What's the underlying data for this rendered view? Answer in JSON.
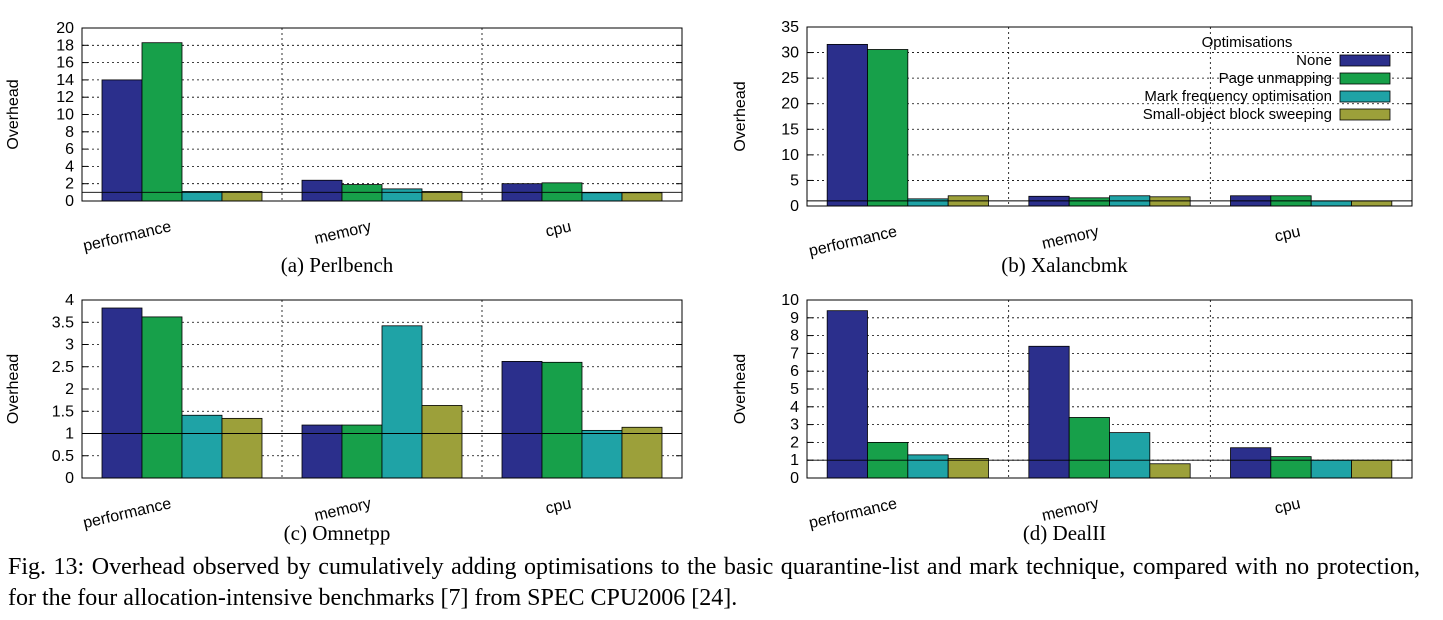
{
  "figure_caption": "Fig. 13: Overhead observed by cumulatively adding optimisations to the basic quarantine-list and mark technique, compared with no protection, for the four allocation-intensive benchmarks [7] from SPEC CPU2006 [24].",
  "legend": {
    "title": "Optimisations",
    "entries": [
      "None",
      "Page unmapping",
      "Mark frequency optimisation",
      "Small-object block sweeping"
    ]
  },
  "colors": {
    "None": "#2b2f8c",
    "Page unmapping": "#17a04a",
    "Mark frequency optimisation": "#1fa3a6",
    "Small-object block sweeping": "#9ca03a",
    "baseline": "#000000",
    "grid": "#000000"
  },
  "chart_data": [
    {
      "type": "bar",
      "subcaption": "(a) Perlbench",
      "ylabel": "Overhead",
      "categories": [
        "performance",
        "memory",
        "cpu"
      ],
      "ylim": [
        0,
        20
      ],
      "yticks": [
        0,
        2,
        4,
        6,
        8,
        10,
        12,
        14,
        16,
        18,
        20
      ],
      "ytick_labels": [
        "0",
        "2",
        "4",
        "6",
        "8",
        "10",
        "12",
        "14",
        "16",
        "18",
        "20"
      ],
      "grid": "dashed",
      "baseline": 1,
      "legend": false,
      "series": [
        {
          "name": "None",
          "values": [
            14.0,
            2.4,
            2.0
          ]
        },
        {
          "name": "Page unmapping",
          "values": [
            18.3,
            1.9,
            2.1
          ]
        },
        {
          "name": "Mark frequency optimisation",
          "values": [
            1.1,
            1.4,
            0.95
          ]
        },
        {
          "name": "Small-object block sweeping",
          "values": [
            1.1,
            1.1,
            0.95
          ]
        }
      ]
    },
    {
      "type": "bar",
      "subcaption": "(b) Xalancbmk",
      "ylabel": "Overhead",
      "categories": [
        "performance",
        "memory",
        "cpu"
      ],
      "ylim": [
        0,
        35
      ],
      "yticks": [
        0,
        5,
        10,
        15,
        20,
        25,
        30,
        35
      ],
      "ytick_labels": [
        "0",
        "5",
        "10",
        "15",
        "20",
        "25",
        "30",
        "35"
      ],
      "grid": "dashed",
      "baseline": 1,
      "legend": "top-right",
      "series": [
        {
          "name": "None",
          "values": [
            31.6,
            1.9,
            2.0
          ]
        },
        {
          "name": "Page unmapping",
          "values": [
            30.6,
            1.6,
            2.0
          ]
        },
        {
          "name": "Mark frequency optimisation",
          "values": [
            1.4,
            2.0,
            1.0
          ]
        },
        {
          "name": "Small-object block sweeping",
          "values": [
            2.0,
            1.8,
            1.0
          ]
        }
      ]
    },
    {
      "type": "bar",
      "subcaption": "(c) Omnetpp",
      "ylabel": "Overhead",
      "categories": [
        "performance",
        "memory",
        "cpu"
      ],
      "ylim": [
        0,
        4
      ],
      "yticks": [
        0,
        0.5,
        1,
        1.5,
        2,
        2.5,
        3,
        3.5,
        4
      ],
      "ytick_labels": [
        "0",
        "0.5",
        "1",
        "1.5",
        "2",
        "2.5",
        "3",
        "3.5",
        "4"
      ],
      "grid": "dashed",
      "baseline": 1,
      "legend": false,
      "series": [
        {
          "name": "None",
          "values": [
            3.82,
            1.19,
            2.62
          ]
        },
        {
          "name": "Page unmapping",
          "values": [
            3.62,
            1.19,
            2.6
          ]
        },
        {
          "name": "Mark frequency optimisation",
          "values": [
            1.41,
            3.42,
            1.07
          ]
        },
        {
          "name": "Small-object block sweeping",
          "values": [
            1.34,
            1.63,
            1.14
          ]
        }
      ]
    },
    {
      "type": "bar",
      "subcaption": "(d) DealII",
      "ylabel": "Overhead",
      "categories": [
        "performance",
        "memory",
        "cpu"
      ],
      "ylim": [
        0,
        10
      ],
      "yticks": [
        0,
        1,
        2,
        3,
        4,
        5,
        6,
        7,
        8,
        9,
        10
      ],
      "ytick_labels": [
        "0",
        "1",
        "2",
        "3",
        "4",
        "5",
        "6",
        "7",
        "8",
        "9",
        "10"
      ],
      "grid": "dashed",
      "baseline": 1,
      "legend": false,
      "series": [
        {
          "name": "None",
          "values": [
            9.4,
            7.4,
            1.7
          ]
        },
        {
          "name": "Page unmapping",
          "values": [
            2.0,
            3.4,
            1.2
          ]
        },
        {
          "name": "Mark frequency optimisation",
          "values": [
            1.3,
            2.55,
            1.0
          ]
        },
        {
          "name": "Small-object block sweeping",
          "values": [
            1.1,
            0.8,
            1.0
          ]
        }
      ]
    }
  ]
}
